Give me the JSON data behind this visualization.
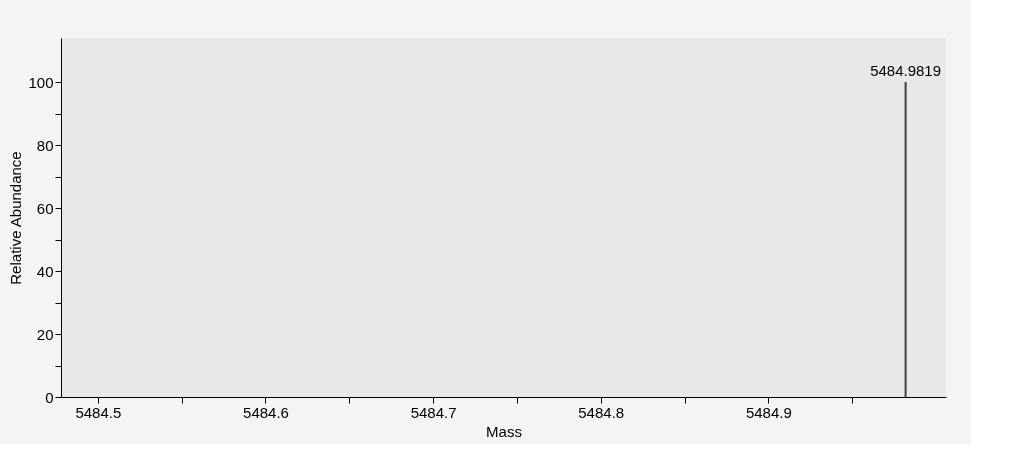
{
  "chart_data": {
    "type": "bar",
    "xlabel": "Mass",
    "ylabel": "Relative Abundance",
    "x": [
      5484.9819
    ],
    "series": [
      {
        "color": "#404040",
        "values": [
          100
        ]
      }
    ],
    "annotations": [
      {
        "text": "5484.9819",
        "x": 5484.9819,
        "y": 100
      }
    ],
    "xlim": [
      5484.478,
      5485.006
    ],
    "xticks": [
      5484.5,
      5484.6,
      5484.7,
      5484.8,
      5484.9,
      {
        "value": 5484.55,
        "label": null
      },
      {
        "value": 5484.65,
        "label": null
      },
      {
        "value": 5484.75,
        "label": null
      },
      {
        "value": 5484.85,
        "label": null
      },
      {
        "value": 5484.95,
        "label": null
      }
    ],
    "ylim": [
      0,
      114
    ],
    "yticks": [
      0,
      20,
      40,
      60,
      80,
      100,
      {
        "value": 10,
        "label": null
      },
      {
        "value": 30,
        "label": null
      },
      {
        "value": 50,
        "label": null
      },
      {
        "value": 70,
        "label": null
      },
      {
        "value": 90,
        "label": null
      }
    ],
    "grid": false
  }
}
